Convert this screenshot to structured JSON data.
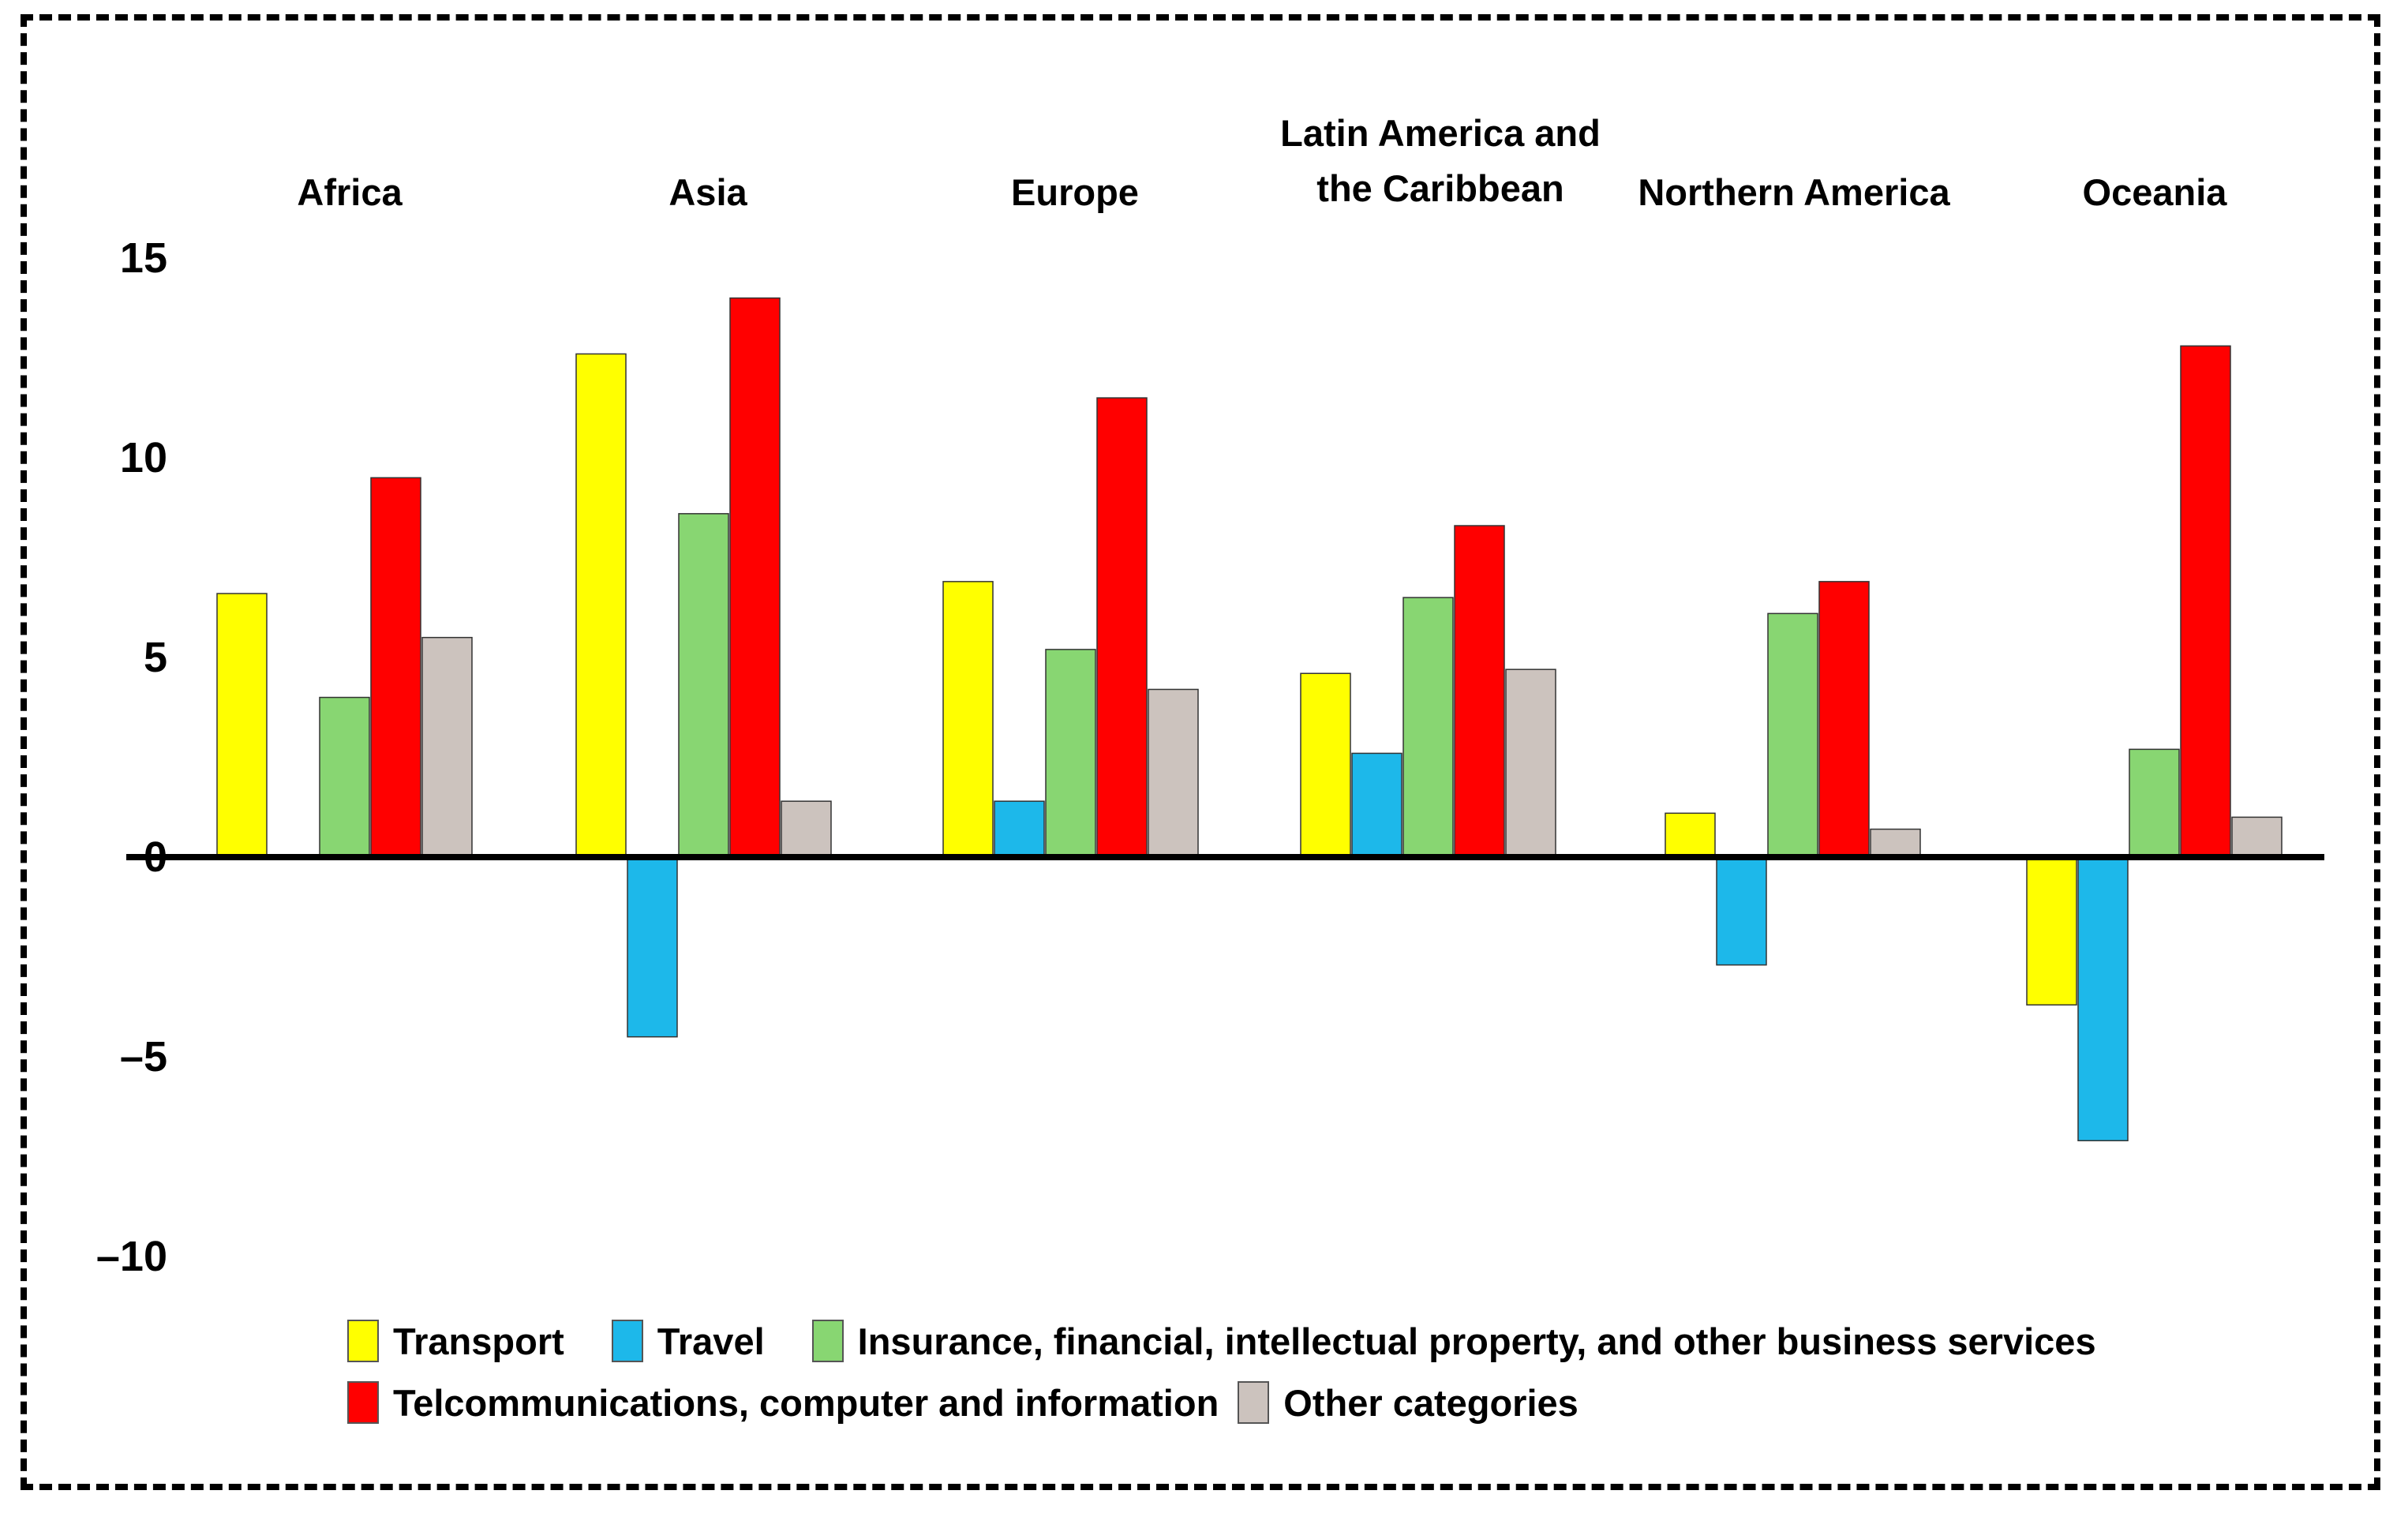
{
  "chart_data": {
    "type": "bar",
    "title": "",
    "xlabel": "",
    "ylabel": "",
    "ylim": [
      -10,
      15
    ],
    "yticks": [
      {
        "value": 15,
        "label": "15"
      },
      {
        "value": 10,
        "label": "10"
      },
      {
        "value": 5,
        "label": "5"
      },
      {
        "value": 0,
        "label": "0"
      },
      {
        "value": -5,
        "label": "–5"
      },
      {
        "value": -10,
        "label": "–10"
      }
    ],
    "categories": [
      {
        "name": "Africa",
        "lines": [
          "Africa"
        ]
      },
      {
        "name": "Asia",
        "lines": [
          "Asia"
        ]
      },
      {
        "name": "Europe",
        "lines": [
          "Europe"
        ]
      },
      {
        "name": "Latin America and the Caribbean",
        "lines": [
          "Latin America and",
          "the Caribbean"
        ]
      },
      {
        "name": "Northern America",
        "lines": [
          "Northern America"
        ]
      },
      {
        "name": "Oceania",
        "lines": [
          "Oceania"
        ]
      }
    ],
    "series": [
      {
        "name": "Transport",
        "color": "#FFFF00",
        "values": [
          6.6,
          12.6,
          6.9,
          4.6,
          1.1,
          -3.7
        ]
      },
      {
        "name": "Travel",
        "color": "#1DB8EA",
        "values": [
          null,
          -4.5,
          1.4,
          2.6,
          -2.7,
          -7.1
        ]
      },
      {
        "name": "Insurance, financial, intellectual property, and other business services",
        "color": "#88D672",
        "values": [
          4.0,
          8.6,
          5.2,
          6.5,
          6.1,
          2.7
        ]
      },
      {
        "name": "Telcommunications, computer and information",
        "color": "#FF0000",
        "values": [
          9.5,
          14.0,
          11.5,
          8.3,
          6.9,
          12.8
        ]
      },
      {
        "name": "Other categories",
        "color": "#CCC3BE",
        "values": [
          5.5,
          1.4,
          4.2,
          4.7,
          0.7,
          1.0
        ]
      }
    ],
    "legend_position": "bottom"
  }
}
